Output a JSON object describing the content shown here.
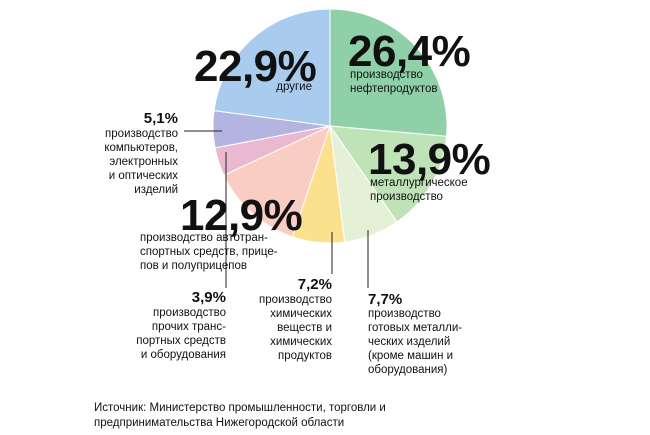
{
  "chart_data": {
    "type": "pie",
    "start_angle_deg": 0,
    "direction": "clockwise",
    "slices": [
      {
        "value": 26.4,
        "pct_label": "26,4%",
        "label": "производство\nнефтепродуктов",
        "color": "#8fd0a8"
      },
      {
        "value": 13.9,
        "pct_label": "13,9%",
        "label": "металлургическое\nпроизводство",
        "color": "#bfe3b7"
      },
      {
        "value": 7.7,
        "pct_label": "7,7%",
        "label": "производство\nготовых металли-\nческих изделий\n(кроме машин и\nоборудования)",
        "color": "#e4f1d6"
      },
      {
        "value": 7.2,
        "pct_label": "7,2%",
        "label": "производство\nхимических\nвеществ и\nхимических\nпродуктов",
        "color": "#fbe08e"
      },
      {
        "value": 12.9,
        "pct_label": "12,9%",
        "label": "производство автотран-\nспортных средств, прице-\nпов и полуприцепов",
        "color": "#f9cdc1"
      },
      {
        "value": 3.9,
        "pct_label": "3,9%",
        "label": "производство\nпрочих транс-\nпортных средств\nи оборудования",
        "color": "#eab8cf"
      },
      {
        "value": 5.1,
        "pct_label": "5,1%",
        "label": "производство\nкомпьютеров,\nэлектронных\nи оптических\nизделий",
        "color": "#b3b5e0"
      },
      {
        "value": 22.9,
        "pct_label": "22,9%",
        "label": "другие",
        "color": "#a9cbee"
      }
    ]
  },
  "source": "Источник: Министерство промышленности, торговли и\nпредпринимательства Нижегородской области"
}
